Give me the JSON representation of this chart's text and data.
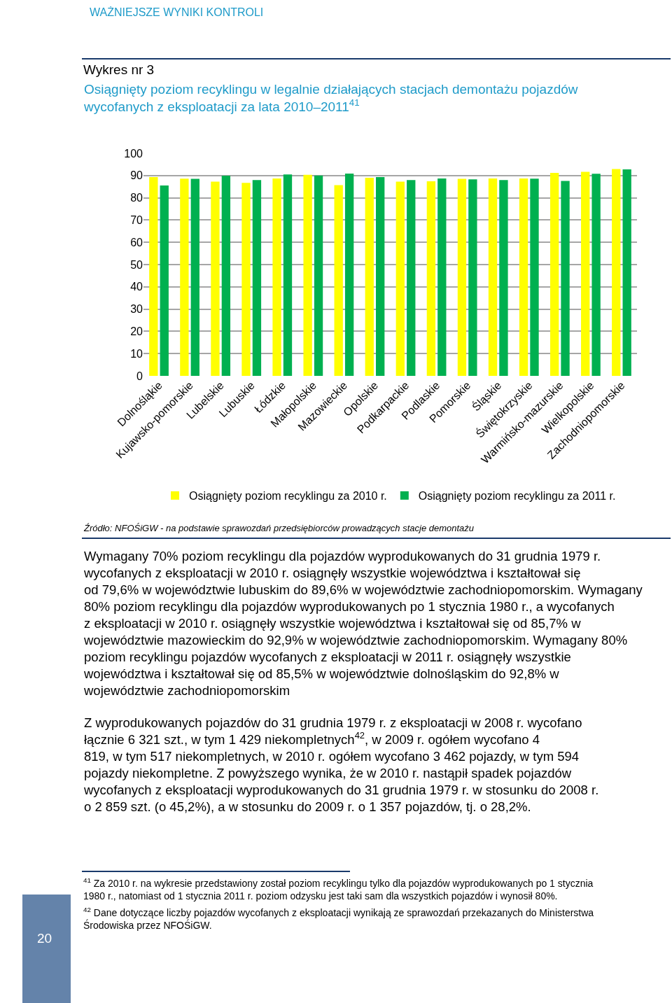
{
  "chart_data": {
    "type": "bar",
    "title": "Wykres nr 3",
    "subtitle": "Osiągnięty poziom recyklingu w legalnie działających stacjach demontażu pojazdów wycofanych z eksploatacji za lata 2010–2011$^{41}$",
    "categories": [
      "Dolnośląkie",
      "Kujawsko-pomorskie",
      "Lubelskie",
      "Lubuskie",
      "Łódzkie",
      "Małopolskie",
      "Mazowieckie",
      "Opolskie",
      "Podkarpackie",
      "Podlaskie",
      "Pomorskie",
      "Śląskie",
      "Świętokrzyskie",
      "Warmińsko-mazurskie",
      "Wielkopolskie",
      "Zachodniopomorskie"
    ],
    "series": [
      {
        "name": "Osiągnięty poziom recyklingu za 2010 r.",
        "color": "#ffff00",
        "values": [
          89.3,
          88.6,
          87.3,
          86.7,
          88.7,
          90.3,
          85.7,
          89.0,
          87.3,
          87.4,
          88.5,
          88.7,
          88.7,
          91.2,
          91.7,
          92.9
        ]
      },
      {
        "name": "Osiągnięty poziom recyklingu za 2011 r.",
        "color": "#00b050",
        "values": [
          85.5,
          88.5,
          89.9,
          88.0,
          90.5,
          90.0,
          90.9,
          89.3,
          88.0,
          88.7,
          88.3,
          88.0,
          88.6,
          87.6,
          90.8,
          92.8
        ]
      }
    ],
    "ylim": [
      0,
      100
    ],
    "yticks": [
      0,
      10,
      20,
      30,
      40,
      50,
      60,
      70,
      80,
      90,
      100
    ],
    "grid": "y",
    "legend": "bottom",
    "annotations": [
      "WAŻNIEJSZE WYNIKI KONTROLI",
      "Źródło: NFOŚiGW - na podstawie sprawozdań przedsiębiorców prowadzących stacje demontażu",
      "Wymagany 70% poziom recyklingu dla pojazdów wyprodukowanych do 31 grudnia 1979 r. wycofanych z eksploatacji w 2010 r. osiągnęły wszystkie województwa i kształtował się od 79,6% w województwie lubuskim do 89,6% w województwie zachodniopomorskim. Wymagany 80% poziom recyklingu dla pojazdów wyprodukowanych po 1 stycznia 1980 r., a wycofanych z eksploatacji w 2010 r. osiągnęły wszystkie województwa i kształtował się od 85,7% w województwie mazowieckim do 92,9% w województwie zachodniopomorskim. Wymagany 80% poziom recyklingu pojazdów wycofanych z eksploatacji w 2011 r. osiągnęły wszystkie województwa i kształtował się od 85,5% w województwie dolnośląskim do 92,8% w województwie zachodniopomorskim",
      "Z wyprodukowanych pojazdów do 31 grudnia 1979 r. z eksploatacji w 2008 r. wycofano łącznie 6 321 szt., w tym 1 429 niekompletnych$^{42}$, w 2009 r. ogółem wycofano 4 819, w tym 517 niekompletnych, w 2010 r. ogółem wycofano 3 462 pojazdy, w tym 594 pojazdy niekompletne. Z powyższego wynika, że w 2010 r. nastąpił spadek pojazdów wycofanych z eksploatacji wyprodukowanych do 31 grudnia 1979 r. w stosunku do 2008 r. o 2 859 szt. (o 45,2%), a w stosunku do 2009 r. o 1 357 pojazdów, tj. o 28,2%.",
      "$^{41}$ Za 2010 r. na wykresie przedstawiony został poziom recyklingu tylko dla pojazdów wyprodukowanych po 1 stycznia 1980 r., natomiast od 1 stycznia 2011 r. poziom odzysku jest taki sam dla wszystkich pojazdów i wynosił 80%.",
      "$^{42}$ Dane dotyczące liczby pojazdów wycofanych z eksploatacji wynikają ze sprawozdań przekazanych do Ministerstwa Środowiska przez NFOŚiGW.",
      "20"
    ]
  }
}
